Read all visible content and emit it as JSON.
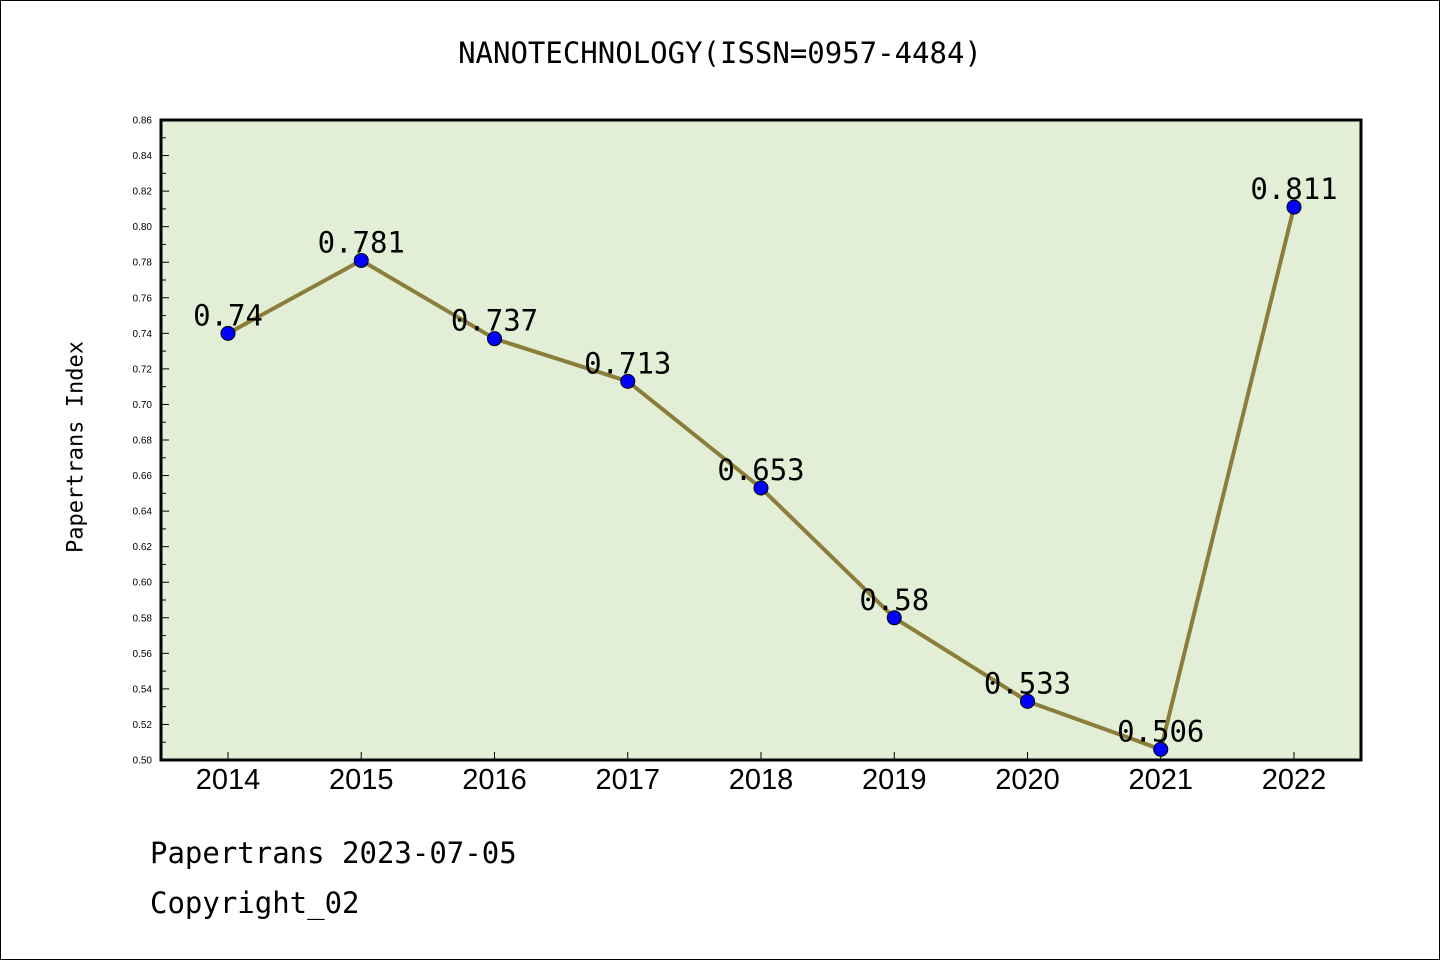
{
  "chart_data": {
    "type": "line",
    "title": "NANOTECHNOLOGY(ISSN=0957-4484)",
    "xlabel": "",
    "ylabel": "Papertrans Index",
    "categories": [
      "2014",
      "2015",
      "2016",
      "2017",
      "2018",
      "2019",
      "2020",
      "2021",
      "2022"
    ],
    "values": [
      0.74,
      0.781,
      0.737,
      0.713,
      0.653,
      0.58,
      0.533,
      0.506,
      0.811
    ],
    "data_labels": [
      "0.74",
      "0.781",
      "0.737",
      "0.713",
      "0.653",
      "0.58",
      "0.533",
      "0.506",
      "0.811"
    ],
    "ylim": [
      0.5,
      0.86
    ],
    "yticks": [
      "0.50",
      "0.52",
      "0.54",
      "0.56",
      "0.58",
      "0.60",
      "0.62",
      "0.64",
      "0.66",
      "0.68",
      "0.70",
      "0.72",
      "0.74",
      "0.76",
      "0.78",
      "0.80",
      "0.82",
      "0.84",
      "0.86"
    ],
    "grid": false,
    "colors": {
      "plot_background": "#e2efd6",
      "line": "#8b7d3a",
      "marker": "#0000ff"
    }
  },
  "footer": {
    "line1": "Papertrans 2023-07-05",
    "line2": "Copyright_02"
  }
}
